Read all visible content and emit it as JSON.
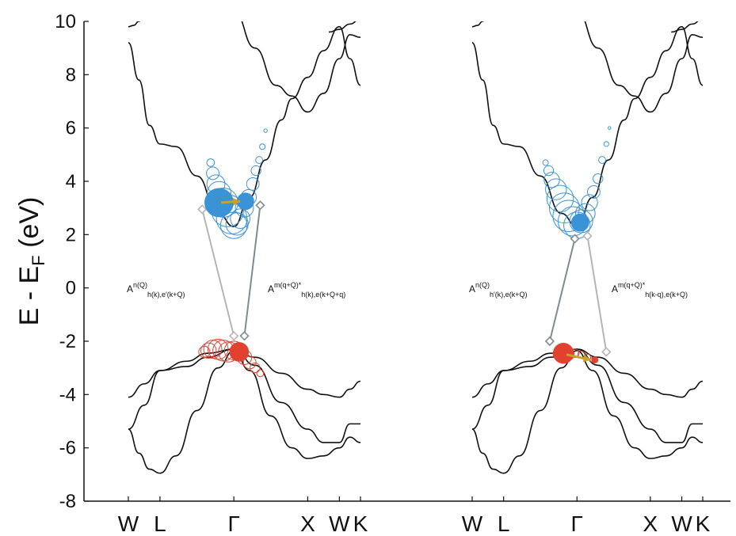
{
  "colors": {
    "axis": "#111111",
    "band": "#111111",
    "conduction": "#3a93d6",
    "valence": "#e0422f",
    "arrow": "#c9a227",
    "connector_light": "#b5b5b5",
    "connector_dark": "#7d8c90"
  },
  "chart_data": {
    "type": "line",
    "ylabel_parts": [
      "E - E",
      "F",
      " (eV)"
    ],
    "ylim": [
      -8,
      10
    ],
    "yticks": [
      "10",
      "8",
      "6",
      "4",
      "2",
      "0",
      "-2",
      "-4",
      "-6",
      "-8"
    ],
    "grid": false,
    "panels": [
      {
        "kpath_labels": [
          "W",
          "L",
          "Γ",
          "X",
          "W",
          "K"
        ],
        "annotation_left": {
          "main": "A",
          "sup": "n(Q)",
          "sub": "h(k),e′(k+Q)"
        },
        "annotation_right": {
          "main": "A",
          "sup": "m(q+Q)*",
          "sub": "h(k),e(k+Q+q)"
        }
      },
      {
        "kpath_labels": [
          "W",
          "L",
          "Γ",
          "X",
          "W",
          "K"
        ],
        "annotation_left": {
          "main": "A",
          "sup": "n(Q)",
          "sub": "h′(k),e(k+Q)"
        },
        "annotation_right": {
          "main": "A",
          "sup": "m(q+Q)*",
          "sub": "h(k-q),e(k+Q)"
        }
      }
    ],
    "kpath_ticks": [
      0.0,
      0.3,
      1.0,
      1.7,
      2.0,
      2.2
    ],
    "bands": [
      {
        "name": "valence-flat",
        "x": [
          0,
          0.15,
          0.3,
          0.55,
          0.75,
          1.0,
          1.2,
          1.45,
          1.7,
          1.85,
          2.0,
          2.1,
          2.2
        ],
        "y": [
          -4.1,
          -3.6,
          -3.1,
          -2.95,
          -2.6,
          -2.3,
          -2.6,
          -3.2,
          -3.8,
          -4.0,
          -4.1,
          -3.8,
          -3.5
        ]
      },
      {
        "name": "valence-mid",
        "x": [
          0,
          0.15,
          0.3,
          0.55,
          0.75,
          1.0,
          1.2,
          1.45,
          1.7,
          1.85,
          2.0,
          2.1,
          2.2
        ],
        "y": [
          -5.3,
          -4.4,
          -3.1,
          -2.75,
          -2.45,
          -2.3,
          -2.9,
          -4.3,
          -5.3,
          -5.8,
          -5.8,
          -5.1,
          -5.1
        ]
      },
      {
        "name": "valence-deep",
        "x": [
          0,
          0.1,
          0.2,
          0.3,
          0.45,
          0.65,
          0.85,
          1.0,
          1.15,
          1.35,
          1.55,
          1.7,
          1.85,
          2.0,
          2.1,
          2.2
        ],
        "y": [
          -5.3,
          -6.2,
          -6.8,
          -6.95,
          -6.3,
          -4.6,
          -3.0,
          -2.35,
          -3.1,
          -4.8,
          -6.0,
          -6.4,
          -6.3,
          -6.0,
          -5.6,
          -5.8
        ]
      },
      {
        "name": "conduction-low",
        "x": [
          0,
          0.1,
          0.2,
          0.3,
          0.45,
          0.65,
          0.85,
          1.0,
          1.15,
          1.3,
          1.45,
          1.55,
          1.7,
          1.85,
          2.0,
          2.1,
          2.2
        ],
        "y": [
          9.2,
          7.8,
          6.1,
          5.4,
          5.3,
          4.2,
          2.8,
          2.3,
          3.4,
          4.8,
          6.3,
          7.1,
          7.9,
          8.9,
          9.8,
          8.6,
          7.6
        ]
      },
      {
        "name": "conduction-high",
        "x": [
          1.0,
          1.2,
          1.4,
          1.55,
          1.7,
          1.85,
          2.0,
          2.1,
          2.2
        ],
        "y": [
          10.4,
          9.0,
          7.6,
          7.2,
          6.6,
          7.3,
          8.6,
          9.5,
          9.4
        ]
      },
      {
        "name": "conduction-top-W",
        "x": [
          0,
          0.05,
          0.1,
          0.15
        ],
        "y": [
          9.8,
          9.85,
          10.0,
          10.3
        ]
      },
      {
        "name": "conduction-top-X",
        "x": [
          1.9,
          2.0,
          2.1,
          2.2
        ],
        "y": [
          9.6,
          9.7,
          9.9,
          10.1
        ]
      }
    ],
    "circles": [
      {
        "panel": 0,
        "conduction": [
          {
            "x": 0.78,
            "y": 4.7,
            "r": 1.1
          },
          {
            "x": 0.8,
            "y": 4.3,
            "r": 1.8
          },
          {
            "x": 0.83,
            "y": 3.9,
            "r": 2.6
          },
          {
            "x": 0.86,
            "y": 3.55,
            "r": 3.4
          },
          {
            "x": 0.9,
            "y": 3.2,
            "r": 4.2
          },
          {
            "x": 0.94,
            "y": 2.9,
            "r": 4.6
          },
          {
            "x": 0.98,
            "y": 2.6,
            "r": 4.4
          },
          {
            "x": 1.0,
            "y": 2.35,
            "r": 3.8
          },
          {
            "x": 1.03,
            "y": 2.4,
            "r": 3.2
          },
          {
            "x": 1.06,
            "y": 2.6,
            "r": 2.8
          },
          {
            "x": 1.1,
            "y": 3.0,
            "r": 2.6
          },
          {
            "x": 1.14,
            "y": 3.4,
            "r": 2.2
          },
          {
            "x": 1.18,
            "y": 3.9,
            "r": 1.8
          },
          {
            "x": 1.21,
            "y": 4.4,
            "r": 1.4
          },
          {
            "x": 1.24,
            "y": 4.8,
            "r": 1.0
          },
          {
            "x": 1.27,
            "y": 5.3,
            "r": 0.8
          },
          {
            "x": 1.3,
            "y": 5.9,
            "r": 0.5
          }
        ],
        "valence": [
          {
            "x": 0.72,
            "y": -2.4,
            "r": 1.6
          },
          {
            "x": 0.76,
            "y": -2.35,
            "r": 2.2
          },
          {
            "x": 0.8,
            "y": -2.3,
            "r": 2.6
          },
          {
            "x": 0.85,
            "y": -2.3,
            "r": 2.9
          },
          {
            "x": 0.9,
            "y": -2.35,
            "r": 3.0
          },
          {
            "x": 0.95,
            "y": -2.4,
            "r": 2.9
          },
          {
            "x": 1.0,
            "y": -2.35,
            "r": 2.7
          },
          {
            "x": 1.05,
            "y": -2.4,
            "r": 2.4
          },
          {
            "x": 1.1,
            "y": -2.6,
            "r": 2.1
          },
          {
            "x": 1.15,
            "y": -2.8,
            "r": 1.8
          },
          {
            "x": 1.2,
            "y": -3.0,
            "r": 1.4
          },
          {
            "x": 1.25,
            "y": -3.2,
            "r": 1.0
          }
        ],
        "filled": [
          {
            "type": "conduction",
            "x": 0.86,
            "y": 3.2,
            "r": 4.2
          },
          {
            "type": "conduction",
            "x": 1.11,
            "y": 3.25,
            "r": 2.5
          },
          {
            "type": "valence",
            "x": 1.05,
            "y": -2.4,
            "r": 2.8
          }
        ],
        "arrow": {
          "x1": 0.88,
          "y1": 3.2,
          "x2": 1.06,
          "y2": 3.25
        },
        "connectors": [
          {
            "x1": 0.7,
            "y1": 2.95,
            "x2": 1.0,
            "y2": -1.8,
            "color": "light"
          },
          {
            "x1": 1.25,
            "y1": 3.1,
            "x2": 1.1,
            "y2": -1.8,
            "color": "dark"
          }
        ]
      },
      {
        "panel": 1,
        "conduction": [
          {
            "x": 0.7,
            "y": 4.7,
            "r": 0.8
          },
          {
            "x": 0.73,
            "y": 4.4,
            "r": 1.4
          },
          {
            "x": 0.76,
            "y": 4.05,
            "r": 2.2
          },
          {
            "x": 0.8,
            "y": 3.7,
            "r": 3.0
          },
          {
            "x": 0.84,
            "y": 3.35,
            "r": 3.8
          },
          {
            "x": 0.88,
            "y": 3.0,
            "r": 4.3
          },
          {
            "x": 0.92,
            "y": 2.7,
            "r": 4.5
          },
          {
            "x": 0.96,
            "y": 2.5,
            "r": 4.2
          },
          {
            "x": 1.0,
            "y": 2.35,
            "r": 3.8
          },
          {
            "x": 1.04,
            "y": 2.5,
            "r": 3.3
          },
          {
            "x": 1.08,
            "y": 2.8,
            "r": 2.8
          },
          {
            "x": 1.12,
            "y": 3.2,
            "r": 2.3
          },
          {
            "x": 1.16,
            "y": 3.6,
            "r": 1.8
          },
          {
            "x": 1.2,
            "y": 4.1,
            "r": 1.4
          },
          {
            "x": 1.24,
            "y": 4.8,
            "r": 1.0
          },
          {
            "x": 1.28,
            "y": 5.4,
            "r": 0.7
          },
          {
            "x": 1.31,
            "y": 6.0,
            "r": 0.4
          }
        ],
        "valence": [
          {
            "x": 0.82,
            "y": -2.5,
            "r": 1.4
          },
          {
            "x": 0.87,
            "y": -2.45,
            "r": 1.8
          },
          {
            "x": 0.92,
            "y": -2.5,
            "r": 1.6
          },
          {
            "x": 0.98,
            "y": -2.45,
            "r": 1.2
          },
          {
            "x": 1.04,
            "y": -2.5,
            "r": 1.0
          },
          {
            "x": 1.1,
            "y": -2.6,
            "r": 0.9
          },
          {
            "x": 1.15,
            "y": -2.7,
            "r": 0.7
          }
        ],
        "filled": [
          {
            "type": "conduction",
            "x": 1.03,
            "y": 2.45,
            "r": 2.6
          },
          {
            "type": "valence",
            "x": 0.87,
            "y": -2.45,
            "r": 3.0
          },
          {
            "type": "valence",
            "x": 1.17,
            "y": -2.7,
            "r": 1.0
          }
        ],
        "arrow": {
          "x1": 0.9,
          "y1": -2.5,
          "x2": 1.13,
          "y2": -2.7
        },
        "connectors": [
          {
            "x1": 0.74,
            "y1": -2.0,
            "x2": 0.98,
            "y2": 1.85,
            "color": "dark"
          },
          {
            "x1": 1.28,
            "y1": -2.4,
            "x2": 1.1,
            "y2": 1.95,
            "color": "light"
          }
        ]
      }
    ]
  }
}
